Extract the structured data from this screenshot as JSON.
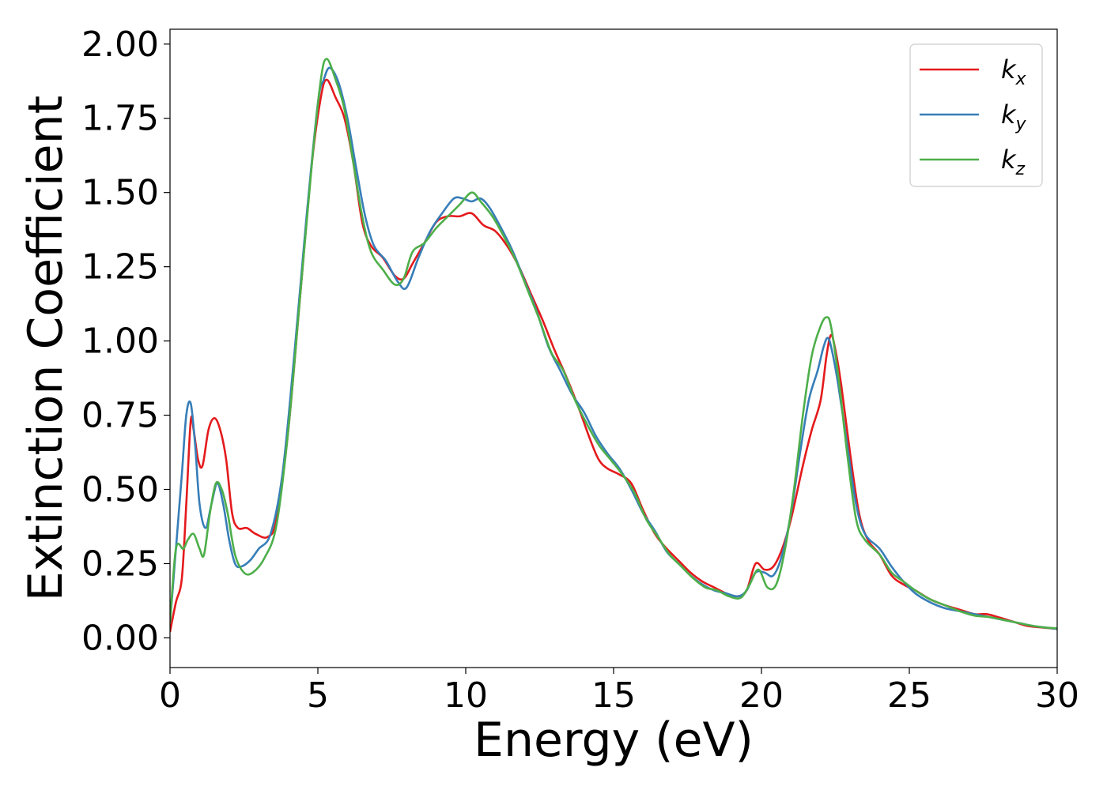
{
  "chart_data": {
    "type": "line",
    "xlabel": "Energy (eV)",
    "ylabel": "Extinction Coefficient",
    "xlim": [
      0,
      30
    ],
    "ylim": [
      -0.1,
      2.05
    ],
    "x_ticks": [
      0,
      5,
      10,
      15,
      20,
      25,
      30
    ],
    "x_tick_labels": [
      "0",
      "5",
      "10",
      "15",
      "20",
      "25",
      "30"
    ],
    "y_ticks": [
      0.0,
      0.25,
      0.5,
      0.75,
      1.0,
      1.25,
      1.5,
      1.75,
      2.0
    ],
    "y_tick_labels": [
      "0.00",
      "0.25",
      "0.50",
      "0.75",
      "1.00",
      "1.25",
      "1.50",
      "1.75",
      "2.00"
    ],
    "grid": false,
    "legend_position": "top-right",
    "series": [
      {
        "name": "k",
        "subscript": "x",
        "color": "#e41a1c",
        "points": [
          [
            0,
            0.02
          ],
          [
            0.2,
            0.12
          ],
          [
            0.4,
            0.2
          ],
          [
            0.55,
            0.45
          ],
          [
            0.7,
            0.73
          ],
          [
            0.8,
            0.7
          ],
          [
            0.95,
            0.6
          ],
          [
            1.1,
            0.58
          ],
          [
            1.3,
            0.7
          ],
          [
            1.5,
            0.74
          ],
          [
            1.7,
            0.7
          ],
          [
            1.9,
            0.6
          ],
          [
            2.1,
            0.42
          ],
          [
            2.3,
            0.37
          ],
          [
            2.6,
            0.37
          ],
          [
            2.9,
            0.35
          ],
          [
            3.3,
            0.34
          ],
          [
            3.6,
            0.4
          ],
          [
            4.0,
            0.7
          ],
          [
            4.4,
            1.15
          ],
          [
            4.8,
            1.6
          ],
          [
            5.1,
            1.82
          ],
          [
            5.3,
            1.88
          ],
          [
            5.6,
            1.82
          ],
          [
            5.9,
            1.75
          ],
          [
            6.2,
            1.6
          ],
          [
            6.5,
            1.4
          ],
          [
            6.8,
            1.32
          ],
          [
            7.2,
            1.28
          ],
          [
            7.6,
            1.22
          ],
          [
            7.9,
            1.21
          ],
          [
            8.2,
            1.26
          ],
          [
            8.6,
            1.33
          ],
          [
            9.0,
            1.4
          ],
          [
            9.4,
            1.42
          ],
          [
            9.8,
            1.42
          ],
          [
            10.2,
            1.43
          ],
          [
            10.6,
            1.39
          ],
          [
            11.0,
            1.37
          ],
          [
            11.4,
            1.32
          ],
          [
            11.8,
            1.25
          ],
          [
            12.2,
            1.16
          ],
          [
            12.6,
            1.07
          ],
          [
            13.0,
            0.97
          ],
          [
            13.4,
            0.88
          ],
          [
            13.8,
            0.78
          ],
          [
            14.2,
            0.67
          ],
          [
            14.5,
            0.6
          ],
          [
            14.8,
            0.57
          ],
          [
            15.2,
            0.55
          ],
          [
            15.6,
            0.52
          ],
          [
            16.0,
            0.43
          ],
          [
            16.4,
            0.35
          ],
          [
            16.8,
            0.3
          ],
          [
            17.2,
            0.26
          ],
          [
            17.6,
            0.22
          ],
          [
            18.0,
            0.19
          ],
          [
            18.4,
            0.17
          ],
          [
            18.8,
            0.15
          ],
          [
            19.2,
            0.14
          ],
          [
            19.5,
            0.16
          ],
          [
            19.8,
            0.25
          ],
          [
            20.1,
            0.23
          ],
          [
            20.4,
            0.24
          ],
          [
            20.7,
            0.3
          ],
          [
            21.0,
            0.4
          ],
          [
            21.4,
            0.58
          ],
          [
            21.7,
            0.7
          ],
          [
            22.0,
            0.8
          ],
          [
            22.2,
            0.95
          ],
          [
            22.35,
            1.02
          ],
          [
            22.5,
            0.97
          ],
          [
            22.7,
            0.85
          ],
          [
            23.0,
            0.62
          ],
          [
            23.3,
            0.42
          ],
          [
            23.6,
            0.33
          ],
          [
            24.0,
            0.28
          ],
          [
            24.4,
            0.21
          ],
          [
            24.8,
            0.18
          ],
          [
            25.2,
            0.16
          ],
          [
            25.7,
            0.13
          ],
          [
            26.2,
            0.11
          ],
          [
            26.7,
            0.095
          ],
          [
            27.2,
            0.08
          ],
          [
            27.6,
            0.08
          ],
          [
            28.0,
            0.07
          ],
          [
            28.5,
            0.055
          ],
          [
            29.0,
            0.04
          ],
          [
            29.5,
            0.035
          ],
          [
            30.0,
            0.03
          ]
        ]
      },
      {
        "name": "k",
        "subscript": "y",
        "color": "#377eb8",
        "points": [
          [
            0,
            0.05
          ],
          [
            0.2,
            0.3
          ],
          [
            0.4,
            0.55
          ],
          [
            0.55,
            0.75
          ],
          [
            0.7,
            0.79
          ],
          [
            0.85,
            0.65
          ],
          [
            1.0,
            0.45
          ],
          [
            1.2,
            0.37
          ],
          [
            1.4,
            0.45
          ],
          [
            1.6,
            0.52
          ],
          [
            1.8,
            0.45
          ],
          [
            2.0,
            0.33
          ],
          [
            2.2,
            0.25
          ],
          [
            2.4,
            0.24
          ],
          [
            2.7,
            0.26
          ],
          [
            3.0,
            0.3
          ],
          [
            3.4,
            0.35
          ],
          [
            3.8,
            0.55
          ],
          [
            4.2,
            0.95
          ],
          [
            4.6,
            1.4
          ],
          [
            5.0,
            1.8
          ],
          [
            5.2,
            1.88
          ],
          [
            5.4,
            1.92
          ],
          [
            5.7,
            1.87
          ],
          [
            6.0,
            1.75
          ],
          [
            6.3,
            1.58
          ],
          [
            6.6,
            1.42
          ],
          [
            6.9,
            1.32
          ],
          [
            7.3,
            1.27
          ],
          [
            7.7,
            1.2
          ],
          [
            8.0,
            1.18
          ],
          [
            8.4,
            1.28
          ],
          [
            8.8,
            1.37
          ],
          [
            9.2,
            1.43
          ],
          [
            9.6,
            1.48
          ],
          [
            9.9,
            1.48
          ],
          [
            10.2,
            1.47
          ],
          [
            10.5,
            1.48
          ],
          [
            10.8,
            1.45
          ],
          [
            11.2,
            1.38
          ],
          [
            11.6,
            1.3
          ],
          [
            12.0,
            1.2
          ],
          [
            12.4,
            1.1
          ],
          [
            12.8,
            0.98
          ],
          [
            13.2,
            0.9
          ],
          [
            13.6,
            0.82
          ],
          [
            14.0,
            0.76
          ],
          [
            14.4,
            0.68
          ],
          [
            14.8,
            0.62
          ],
          [
            15.2,
            0.57
          ],
          [
            15.6,
            0.5
          ],
          [
            16.0,
            0.42
          ],
          [
            16.4,
            0.36
          ],
          [
            16.8,
            0.29
          ],
          [
            17.2,
            0.25
          ],
          [
            17.6,
            0.21
          ],
          [
            18.0,
            0.18
          ],
          [
            18.4,
            0.16
          ],
          [
            18.8,
            0.15
          ],
          [
            19.2,
            0.14
          ],
          [
            19.5,
            0.16
          ],
          [
            19.8,
            0.22
          ],
          [
            20.1,
            0.22
          ],
          [
            20.4,
            0.21
          ],
          [
            20.7,
            0.28
          ],
          [
            21.0,
            0.42
          ],
          [
            21.3,
            0.62
          ],
          [
            21.6,
            0.8
          ],
          [
            21.9,
            0.9
          ],
          [
            22.1,
            0.98
          ],
          [
            22.25,
            1.01
          ],
          [
            22.4,
            0.96
          ],
          [
            22.6,
            0.85
          ],
          [
            22.9,
            0.65
          ],
          [
            23.2,
            0.45
          ],
          [
            23.5,
            0.35
          ],
          [
            24.0,
            0.3
          ],
          [
            24.4,
            0.24
          ],
          [
            24.8,
            0.19
          ],
          [
            25.2,
            0.15
          ],
          [
            25.7,
            0.12
          ],
          [
            26.2,
            0.1
          ],
          [
            26.7,
            0.09
          ],
          [
            27.2,
            0.08
          ],
          [
            27.7,
            0.07
          ],
          [
            28.2,
            0.06
          ],
          [
            28.7,
            0.05
          ],
          [
            29.2,
            0.04
          ],
          [
            29.6,
            0.035
          ],
          [
            30.0,
            0.03
          ]
        ]
      },
      {
        "name": "k",
        "subscript": "z",
        "color": "#4daf4a",
        "points": [
          [
            0,
            0.05
          ],
          [
            0.2,
            0.3
          ],
          [
            0.45,
            0.3
          ],
          [
            0.6,
            0.33
          ],
          [
            0.8,
            0.35
          ],
          [
            1.0,
            0.3
          ],
          [
            1.15,
            0.28
          ],
          [
            1.35,
            0.42
          ],
          [
            1.55,
            0.52
          ],
          [
            1.75,
            0.5
          ],
          [
            1.95,
            0.42
          ],
          [
            2.2,
            0.28
          ],
          [
            2.5,
            0.22
          ],
          [
            2.8,
            0.22
          ],
          [
            3.2,
            0.27
          ],
          [
            3.6,
            0.38
          ],
          [
            4.0,
            0.7
          ],
          [
            4.4,
            1.15
          ],
          [
            4.8,
            1.6
          ],
          [
            5.1,
            1.88
          ],
          [
            5.3,
            1.95
          ],
          [
            5.6,
            1.88
          ],
          [
            5.9,
            1.78
          ],
          [
            6.2,
            1.6
          ],
          [
            6.5,
            1.42
          ],
          [
            6.8,
            1.3
          ],
          [
            7.2,
            1.24
          ],
          [
            7.6,
            1.19
          ],
          [
            7.9,
            1.21
          ],
          [
            8.2,
            1.3
          ],
          [
            8.6,
            1.33
          ],
          [
            9.0,
            1.38
          ],
          [
            9.4,
            1.42
          ],
          [
            9.8,
            1.46
          ],
          [
            10.2,
            1.5
          ],
          [
            10.5,
            1.47
          ],
          [
            10.9,
            1.42
          ],
          [
            11.3,
            1.35
          ],
          [
            11.7,
            1.27
          ],
          [
            12.1,
            1.17
          ],
          [
            12.5,
            1.07
          ],
          [
            12.9,
            0.96
          ],
          [
            13.3,
            0.9
          ],
          [
            13.7,
            0.8
          ],
          [
            14.1,
            0.72
          ],
          [
            14.5,
            0.65
          ],
          [
            14.9,
            0.6
          ],
          [
            15.3,
            0.55
          ],
          [
            15.7,
            0.49
          ],
          [
            16.1,
            0.4
          ],
          [
            16.5,
            0.34
          ],
          [
            16.9,
            0.28
          ],
          [
            17.3,
            0.24
          ],
          [
            17.7,
            0.2
          ],
          [
            18.1,
            0.17
          ],
          [
            18.5,
            0.16
          ],
          [
            18.9,
            0.14
          ],
          [
            19.3,
            0.135
          ],
          [
            19.6,
            0.18
          ],
          [
            19.9,
            0.23
          ],
          [
            20.2,
            0.17
          ],
          [
            20.5,
            0.18
          ],
          [
            20.8,
            0.3
          ],
          [
            21.1,
            0.5
          ],
          [
            21.4,
            0.75
          ],
          [
            21.7,
            0.95
          ],
          [
            22.0,
            1.05
          ],
          [
            22.2,
            1.08
          ],
          [
            22.35,
            1.05
          ],
          [
            22.6,
            0.88
          ],
          [
            22.9,
            0.62
          ],
          [
            23.2,
            0.4
          ],
          [
            23.5,
            0.33
          ],
          [
            24.0,
            0.28
          ],
          [
            24.4,
            0.22
          ],
          [
            24.8,
            0.19
          ],
          [
            25.2,
            0.16
          ],
          [
            25.7,
            0.13
          ],
          [
            26.2,
            0.11
          ],
          [
            26.7,
            0.09
          ],
          [
            27.2,
            0.075
          ],
          [
            27.7,
            0.07
          ],
          [
            28.2,
            0.06
          ],
          [
            28.7,
            0.05
          ],
          [
            29.2,
            0.04
          ],
          [
            29.6,
            0.035
          ],
          [
            30.0,
            0.032
          ]
        ]
      }
    ]
  }
}
